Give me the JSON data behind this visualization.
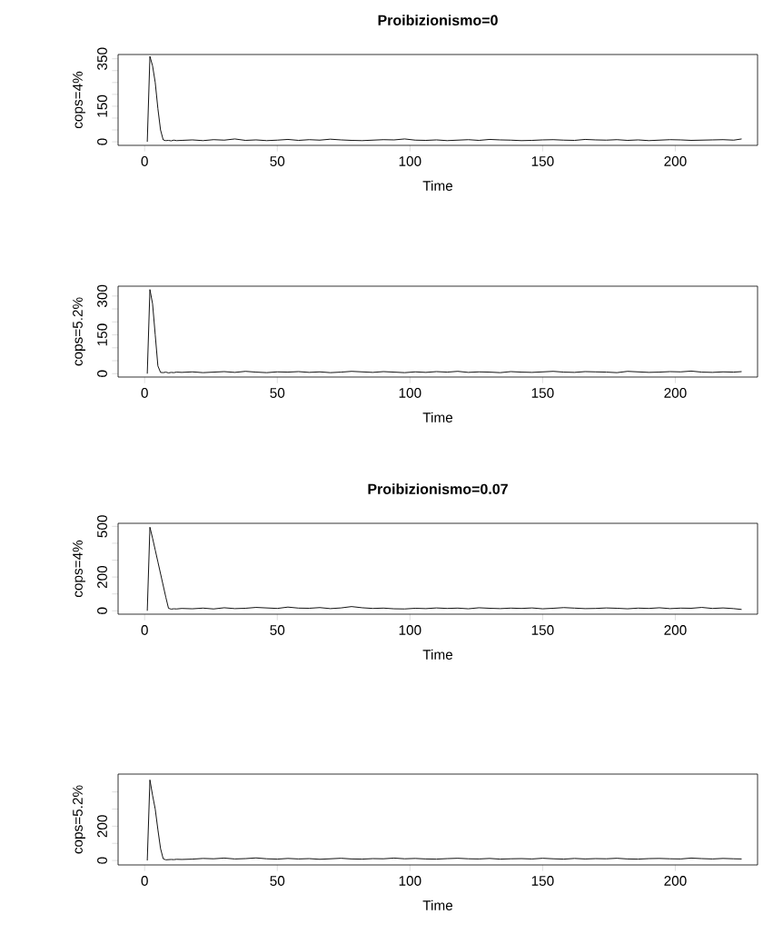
{
  "chart_data": [
    {
      "type": "line",
      "title": "Proibizionismo=0",
      "xlabel": "Time",
      "ylabel": "cops=4%",
      "color": "#000000",
      "x": [
        1,
        2,
        3,
        4,
        5,
        6,
        7,
        8,
        9,
        10,
        11,
        12,
        14,
        18,
        22,
        26,
        30,
        34,
        38,
        42,
        46,
        50,
        54,
        58,
        62,
        66,
        70,
        74,
        78,
        82,
        86,
        90,
        94,
        98,
        102,
        106,
        110,
        114,
        118,
        122,
        126,
        130,
        134,
        138,
        142,
        146,
        150,
        154,
        158,
        162,
        166,
        170,
        174,
        178,
        182,
        186,
        190,
        194,
        198,
        202,
        206,
        210,
        214,
        218,
        222,
        225
      ],
      "values": [
        0,
        360,
        320,
        250,
        140,
        50,
        8,
        5,
        6,
        4,
        7,
        5,
        6,
        8,
        5,
        9,
        7,
        12,
        6,
        8,
        5,
        7,
        10,
        6,
        9,
        7,
        11,
        8,
        6,
        5,
        7,
        9,
        8,
        12,
        7,
        6,
        8,
        5,
        7,
        9,
        6,
        10,
        8,
        7,
        5,
        6,
        8,
        9,
        7,
        6,
        10,
        8,
        7,
        9,
        6,
        8,
        5,
        7,
        9,
        8,
        6,
        7,
        8,
        9,
        7,
        12
      ],
      "xlim": [
        -10,
        231
      ],
      "ylim": [
        -15,
        368
      ],
      "xticks": [
        0,
        50,
        100,
        150,
        200
      ],
      "yticks": [
        0,
        {
          "value": 50,
          "label": null
        },
        {
          "value": 100,
          "label": null
        },
        150,
        {
          "value": 200,
          "label": null
        },
        {
          "value": 250,
          "label": null
        },
        {
          "value": 300,
          "label": null
        },
        350
      ]
    },
    {
      "type": "line",
      "xlabel": "Time",
      "ylabel": "cops=5.2%",
      "color": "#000000",
      "x": [
        1,
        2,
        3,
        4,
        5,
        6,
        7,
        8,
        9,
        10,
        11,
        12,
        14,
        18,
        22,
        26,
        30,
        34,
        38,
        42,
        46,
        50,
        54,
        58,
        62,
        66,
        70,
        74,
        78,
        82,
        86,
        90,
        94,
        98,
        102,
        106,
        110,
        114,
        118,
        122,
        126,
        130,
        134,
        138,
        142,
        146,
        150,
        154,
        158,
        162,
        166,
        170,
        174,
        178,
        182,
        186,
        190,
        194,
        198,
        202,
        206,
        210,
        214,
        218,
        222,
        225
      ],
      "values": [
        0,
        325,
        270,
        150,
        30,
        5,
        4,
        6,
        3,
        5,
        4,
        6,
        5,
        7,
        4,
        6,
        8,
        5,
        9,
        6,
        4,
        7,
        6,
        8,
        5,
        7,
        4,
        6,
        9,
        7,
        5,
        8,
        6,
        4,
        7,
        5,
        8,
        6,
        9,
        5,
        7,
        6,
        4,
        8,
        6,
        5,
        7,
        9,
        6,
        5,
        8,
        7,
        6,
        4,
        9,
        7,
        5,
        6,
        8,
        7,
        10,
        6,
        5,
        7,
        6,
        8
      ],
      "xlim": [
        -10,
        231
      ],
      "ylim": [
        -13,
        338
      ],
      "xticks": [
        0,
        50,
        100,
        150,
        200
      ],
      "yticks": [
        0,
        {
          "value": 50,
          "label": null
        },
        {
          "value": 100,
          "label": null
        },
        150,
        {
          "value": 200,
          "label": null
        },
        {
          "value": 250,
          "label": null
        },
        300
      ]
    },
    {
      "type": "line",
      "title": "Proibizionismo=0.07",
      "xlabel": "Time",
      "ylabel": "cops=4%",
      "color": "#000000",
      "x": [
        1,
        2,
        3,
        4,
        5,
        6,
        7,
        8,
        9,
        10,
        11,
        12,
        14,
        18,
        22,
        26,
        30,
        34,
        38,
        42,
        46,
        50,
        54,
        58,
        62,
        66,
        70,
        74,
        78,
        82,
        86,
        90,
        94,
        98,
        102,
        106,
        110,
        114,
        118,
        122,
        126,
        130,
        134,
        138,
        142,
        146,
        150,
        154,
        158,
        162,
        166,
        170,
        174,
        178,
        182,
        186,
        190,
        194,
        198,
        202,
        206,
        210,
        214,
        218,
        222,
        225
      ],
      "values": [
        0,
        495,
        430,
        360,
        290,
        220,
        150,
        80,
        15,
        10,
        12,
        11,
        14,
        12,
        16,
        11,
        18,
        13,
        15,
        20,
        17,
        14,
        22,
        16,
        15,
        19,
        13,
        17,
        25,
        18,
        14,
        16,
        12,
        11,
        15,
        13,
        17,
        14,
        16,
        12,
        18,
        15,
        13,
        16,
        14,
        17,
        12,
        15,
        19,
        16,
        13,
        14,
        17,
        15,
        12,
        16,
        14,
        18,
        13,
        16,
        15,
        20,
        14,
        17,
        13,
        8
      ],
      "xlim": [
        -10,
        231
      ],
      "ylim": [
        -20,
        518
      ],
      "xticks": [
        0,
        50,
        100,
        150,
        200
      ],
      "yticks": [
        0,
        {
          "value": 100,
          "label": null
        },
        200,
        {
          "value": 300,
          "label": null
        },
        {
          "value": 400,
          "label": null
        },
        500
      ]
    },
    {
      "type": "line",
      "xlabel": "Time",
      "ylabel": "cops=5.2%",
      "color": "#000000",
      "x": [
        1,
        2,
        3,
        4,
        5,
        6,
        7,
        8,
        9,
        10,
        11,
        12,
        14,
        18,
        22,
        26,
        30,
        34,
        38,
        42,
        46,
        50,
        54,
        58,
        62,
        66,
        70,
        74,
        78,
        82,
        86,
        90,
        94,
        98,
        102,
        106,
        110,
        114,
        118,
        122,
        126,
        130,
        134,
        138,
        142,
        146,
        150,
        154,
        158,
        162,
        166,
        170,
        174,
        178,
        182,
        186,
        190,
        194,
        198,
        202,
        206,
        210,
        214,
        218,
        222,
        225
      ],
      "values": [
        0,
        470,
        380,
        300,
        180,
        70,
        10,
        4,
        5,
        6,
        5,
        7,
        6,
        8,
        12,
        10,
        14,
        9,
        11,
        15,
        10,
        8,
        12,
        9,
        11,
        7,
        10,
        13,
        9,
        8,
        11,
        10,
        14,
        10,
        12,
        9,
        8,
        11,
        13,
        10,
        9,
        12,
        8,
        10,
        11,
        9,
        13,
        10,
        8,
        12,
        9,
        11,
        10,
        13,
        9,
        8,
        11,
        12,
        10,
        9,
        14,
        11,
        9,
        12,
        10,
        9
      ],
      "xlim": [
        -10,
        231
      ],
      "ylim": [
        -26,
        504
      ],
      "xticks": [
        0,
        50,
        100,
        150,
        200
      ],
      "yticks": [
        0,
        {
          "value": 100,
          "label": null
        },
        200,
        {
          "value": 300,
          "label": null
        },
        {
          "value": 400,
          "label": null
        }
      ]
    }
  ]
}
